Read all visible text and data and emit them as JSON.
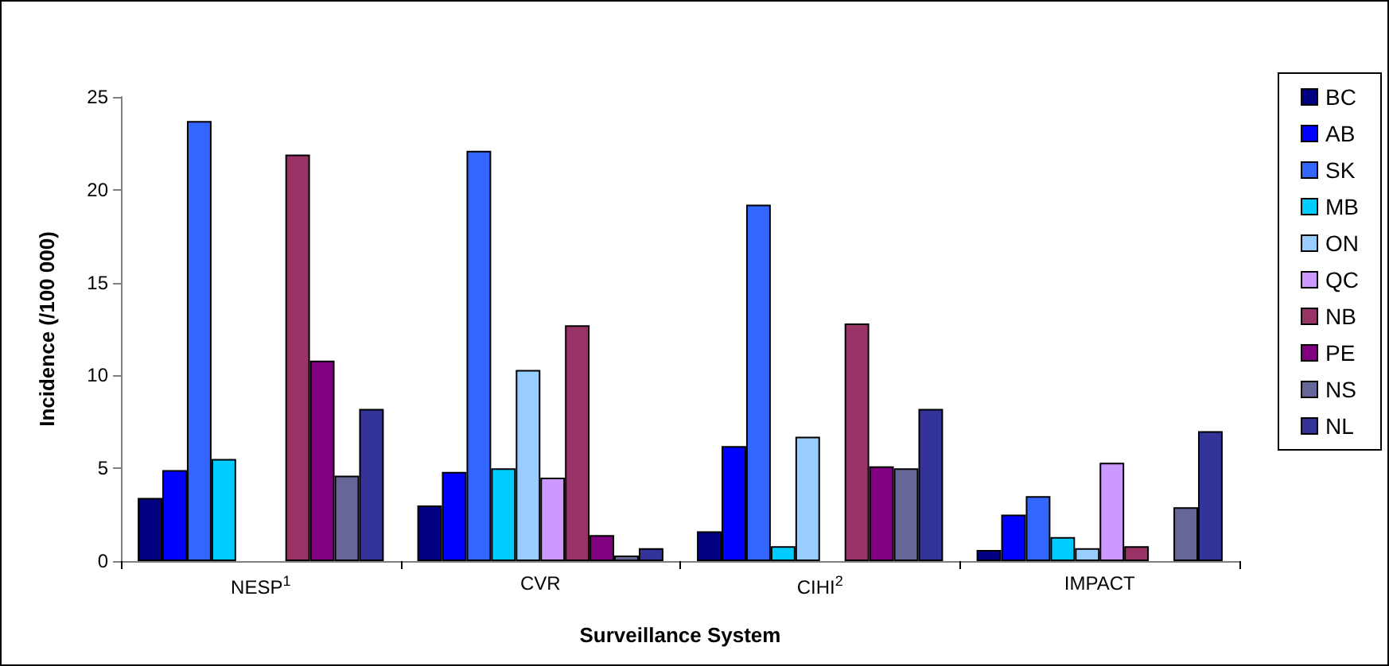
{
  "chart_data": {
    "type": "bar",
    "xlabel": "Surveillance System",
    "ylabel": "Incidence (/100 000)",
    "categories": [
      "NESP$^{1}$",
      "CVR",
      "CIHI$^{2}$",
      "IMPACT"
    ],
    "series": [
      {
        "name": "BC",
        "color": "#000080",
        "values": [
          3.4,
          3.0,
          1.6,
          0.6
        ]
      },
      {
        "name": "AB",
        "color": "#0000ff",
        "values": [
          4.9,
          4.8,
          6.2,
          2.5
        ]
      },
      {
        "name": "SK",
        "color": "#3366ff",
        "values": [
          23.7,
          22.1,
          19.2,
          3.5
        ]
      },
      {
        "name": "MB",
        "color": "#00ccff",
        "values": [
          5.5,
          5.0,
          0.8,
          1.3
        ]
      },
      {
        "name": "ON",
        "color": "#99ccff",
        "values": [
          null,
          10.3,
          6.7,
          0.7
        ]
      },
      {
        "name": "QC",
        "color": "#cc99ff",
        "values": [
          null,
          4.5,
          null,
          5.3
        ]
      },
      {
        "name": "NB",
        "color": "#993366",
        "values": [
          21.9,
          12.7,
          12.8,
          0.8
        ]
      },
      {
        "name": "PE",
        "color": "#800080",
        "values": [
          10.8,
          1.4,
          5.1,
          null
        ]
      },
      {
        "name": "NS",
        "color": "#666699",
        "values": [
          4.6,
          0.3,
          5.0,
          2.9
        ]
      },
      {
        "name": "NL",
        "color": "#333399",
        "values": [
          8.2,
          0.7,
          8.2,
          7.0
        ]
      }
    ],
    "ylim": [
      0,
      25
    ],
    "yticks": [
      0,
      5,
      10,
      15,
      20,
      25
    ],
    "grid": false,
    "legend": "right"
  }
}
